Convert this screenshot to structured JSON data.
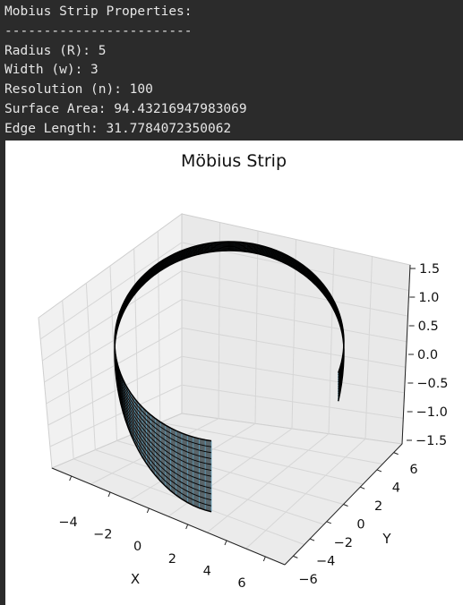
{
  "console": {
    "lines": [
      "Mobius Strip Properties:",
      "------------------------",
      "Radius (R): 5",
      "Width (w): 3",
      "Resolution (n): 100",
      "Surface Area: 94.43216947983069",
      "Edge Length: 31.7784072350062"
    ]
  },
  "chart_data": {
    "type": "surface3d",
    "title": "Möbius Strip",
    "xlabel": "X",
    "ylabel": "Y",
    "zlabel": "",
    "x_ticks": [
      "−4",
      "−2",
      "0",
      "2",
      "4",
      "6"
    ],
    "y_ticks": [
      "−6",
      "−4",
      "−2",
      "0",
      "2",
      "4",
      "6"
    ],
    "z_ticks": [
      "1.5",
      "1.0",
      "0.5",
      "0.0",
      "−0.5",
      "−1.0",
      "−1.5"
    ],
    "xlim": [
      -5,
      7
    ],
    "ylim": [
      -7,
      7
    ],
    "zlim": [
      -1.5,
      1.5
    ],
    "surface_color": "#87ceeb",
    "edge_color": "#000000",
    "pane_color": "#f2f2f2",
    "grid": true
  }
}
